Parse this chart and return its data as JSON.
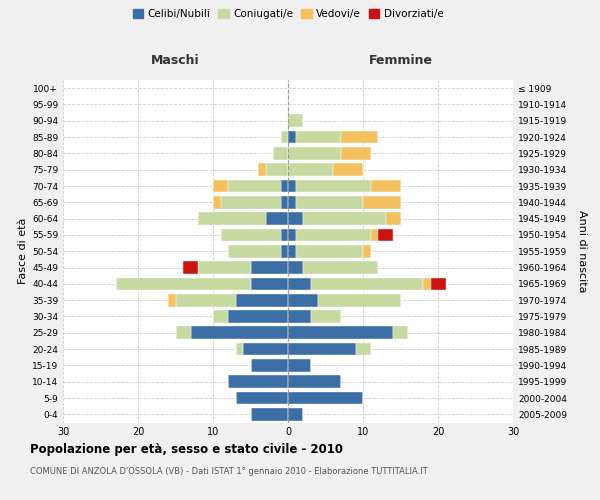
{
  "age_groups": [
    "0-4",
    "5-9",
    "10-14",
    "15-19",
    "20-24",
    "25-29",
    "30-34",
    "35-39",
    "40-44",
    "45-49",
    "50-54",
    "55-59",
    "60-64",
    "65-69",
    "70-74",
    "75-79",
    "80-84",
    "85-89",
    "90-94",
    "95-99",
    "100+"
  ],
  "birth_years": [
    "2005-2009",
    "2000-2004",
    "1995-1999",
    "1990-1994",
    "1985-1989",
    "1980-1984",
    "1975-1979",
    "1970-1974",
    "1965-1969",
    "1960-1964",
    "1955-1959",
    "1950-1954",
    "1945-1949",
    "1940-1944",
    "1935-1939",
    "1930-1934",
    "1925-1929",
    "1920-1924",
    "1915-1919",
    "1910-1914",
    "≤ 1909"
  ],
  "maschi": {
    "celibi": [
      5,
      7,
      8,
      5,
      6,
      13,
      8,
      7,
      5,
      5,
      1,
      1,
      3,
      1,
      1,
      0,
      0,
      0,
      0,
      0,
      0
    ],
    "coniugati": [
      0,
      0,
      0,
      0,
      1,
      2,
      2,
      8,
      18,
      7,
      7,
      8,
      9,
      8,
      7,
      3,
      2,
      1,
      0,
      0,
      0
    ],
    "vedovi": [
      0,
      0,
      0,
      0,
      0,
      0,
      0,
      1,
      0,
      0,
      0,
      0,
      0,
      1,
      2,
      1,
      0,
      0,
      0,
      0,
      0
    ],
    "divorziati": [
      0,
      0,
      0,
      0,
      0,
      0,
      0,
      0,
      0,
      2,
      0,
      0,
      0,
      0,
      0,
      0,
      0,
      0,
      0,
      0,
      0
    ]
  },
  "femmine": {
    "celibi": [
      2,
      10,
      7,
      3,
      9,
      14,
      3,
      4,
      3,
      2,
      1,
      1,
      2,
      1,
      1,
      0,
      0,
      1,
      0,
      0,
      0
    ],
    "coniugati": [
      0,
      0,
      0,
      0,
      2,
      2,
      4,
      11,
      15,
      10,
      9,
      10,
      11,
      9,
      10,
      6,
      7,
      6,
      2,
      0,
      0
    ],
    "vedovi": [
      0,
      0,
      0,
      0,
      0,
      0,
      0,
      0,
      1,
      0,
      1,
      1,
      2,
      5,
      4,
      4,
      4,
      5,
      0,
      0,
      0
    ],
    "divorziati": [
      0,
      0,
      0,
      0,
      0,
      0,
      0,
      0,
      2,
      0,
      0,
      2,
      0,
      0,
      0,
      0,
      0,
      0,
      0,
      0,
      0
    ]
  },
  "colors": {
    "celibi": "#3a6ea5",
    "coniugati": "#c5d9a0",
    "vedovi": "#f5c060",
    "divorziati": "#cc1111"
  },
  "xlim": 30,
  "title": "Popolazione per età, sesso e stato civile - 2010",
  "subtitle": "COMUNE DI ANZOLA D'OSSOLA (VB) - Dati ISTAT 1° gennaio 2010 - Elaborazione TUTTITALIA.IT",
  "legend_labels": [
    "Celibi/Nubili",
    "Coniugati/e",
    "Vedovi/e",
    "Divorziati/e"
  ],
  "ylabel_left": "Fasce di età",
  "ylabel_right": "Anni di nascita",
  "label_maschi": "Maschi",
  "label_femmine": "Femmine",
  "bg_color": "#f0f0f0",
  "plot_bg": "#ffffff"
}
